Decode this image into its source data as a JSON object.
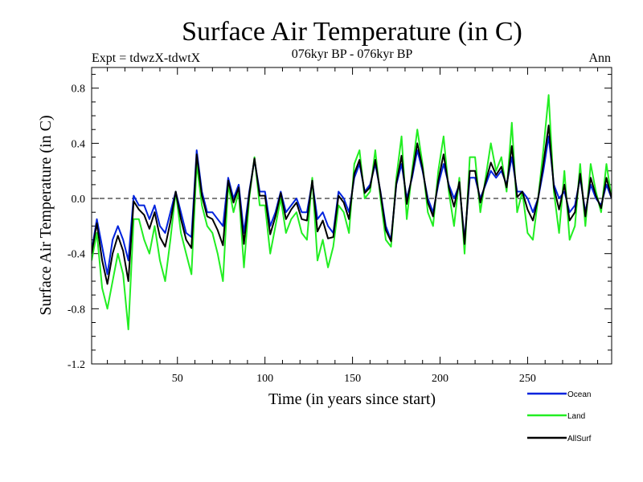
{
  "chart_data": {
    "type": "line",
    "title": "Surface Air Temperature (in C)",
    "subtitle_left": "Expt = tdwzX-tdwtX",
    "subtitle_center": "076kyr BP - 076kyr BP",
    "subtitle_right": "Ann",
    "xlabel": "Time (in years since start)",
    "ylabel": "Surface Air Temperature (in C)",
    "xlim": [
      1,
      298
    ],
    "ylim": [
      -1.2,
      0.95
    ],
    "x_ticks": [
      50,
      100,
      150,
      200,
      250
    ],
    "y_ticks": [
      -1.2,
      -0.8,
      -0.4,
      0.0,
      0.4,
      0.8
    ],
    "y_tick_labels": [
      "-1.2",
      "-0.8",
      "-0.4",
      "0.0",
      "0.4",
      "0.8"
    ],
    "zero_line": "dashed",
    "grid": false,
    "legend_position": "bottom-right",
    "series": [
      {
        "name": "Ocean",
        "color": "#0022dd",
        "x_start": 1,
        "x_step": 3,
        "values": [
          -0.38,
          -0.15,
          -0.35,
          -0.55,
          -0.3,
          -0.2,
          -0.3,
          -0.45,
          0.02,
          -0.05,
          -0.05,
          -0.15,
          -0.05,
          -0.2,
          -0.25,
          -0.1,
          0.05,
          -0.1,
          -0.25,
          -0.28,
          0.35,
          0.05,
          -0.1,
          -0.1,
          -0.15,
          -0.2,
          0.15,
          0.0,
          0.1,
          -0.25,
          0.05,
          0.28,
          0.05,
          0.05,
          -0.2,
          -0.1,
          0.05,
          -0.1,
          -0.05,
          0.0,
          -0.1,
          -0.1,
          0.12,
          -0.15,
          -0.1,
          -0.2,
          -0.25,
          0.05,
          0.0,
          -0.1,
          0.15,
          0.25,
          0.05,
          0.1,
          0.25,
          0.05,
          -0.2,
          -0.3,
          0.1,
          0.25,
          0.0,
          0.15,
          0.35,
          0.2,
          0.0,
          -0.1,
          0.1,
          0.25,
          0.1,
          0.0,
          0.1,
          -0.3,
          0.15,
          0.15,
          0.0,
          0.1,
          0.2,
          0.15,
          0.2,
          0.1,
          0.3,
          0.05,
          0.05,
          0.0,
          -0.1,
          0.0,
          0.2,
          0.45,
          0.1,
          0.0,
          0.05,
          -0.1,
          -0.05,
          0.15,
          -0.1,
          0.1,
          0.0,
          -0.05,
          0.1,
          0.0
        ]
      },
      {
        "name": "Land",
        "color": "#22ee22",
        "x_start": 1,
        "x_step": 3,
        "values": [
          -0.45,
          -0.25,
          -0.65,
          -0.8,
          -0.6,
          -0.4,
          -0.55,
          -0.95,
          -0.15,
          -0.15,
          -0.3,
          -0.4,
          -0.2,
          -0.45,
          -0.6,
          -0.3,
          0.05,
          -0.25,
          -0.4,
          -0.55,
          0.25,
          -0.05,
          -0.2,
          -0.25,
          -0.4,
          -0.6,
          0.1,
          -0.1,
          0.05,
          -0.5,
          0.0,
          0.3,
          -0.05,
          -0.05,
          -0.4,
          -0.2,
          0.0,
          -0.25,
          -0.15,
          -0.1,
          -0.25,
          -0.3,
          0.15,
          -0.45,
          -0.3,
          -0.5,
          -0.35,
          -0.05,
          -0.1,
          -0.25,
          0.25,
          0.35,
          0.0,
          0.05,
          0.35,
          0.0,
          -0.3,
          -0.35,
          0.15,
          0.45,
          -0.15,
          0.2,
          0.5,
          0.25,
          -0.1,
          -0.2,
          0.2,
          0.45,
          0.05,
          -0.2,
          0.15,
          -0.4,
          0.3,
          0.3,
          -0.1,
          0.15,
          0.4,
          0.2,
          0.3,
          0.05,
          0.55,
          -0.1,
          0.05,
          -0.25,
          -0.3,
          0.0,
          0.35,
          0.75,
          0.05,
          -0.25,
          0.2,
          -0.3,
          -0.2,
          0.25,
          -0.2,
          0.25,
          0.05,
          -0.1,
          0.25,
          0.0
        ]
      },
      {
        "name": "AllSurf",
        "color": "#000000",
        "x_start": 1,
        "x_step": 3,
        "values": [
          -0.4,
          -0.18,
          -0.45,
          -0.62,
          -0.4,
          -0.27,
          -0.38,
          -0.6,
          -0.02,
          -0.08,
          -0.12,
          -0.22,
          -0.1,
          -0.28,
          -0.35,
          -0.17,
          0.05,
          -0.15,
          -0.3,
          -0.36,
          0.32,
          0.02,
          -0.13,
          -0.15,
          -0.23,
          -0.34,
          0.13,
          -0.03,
          0.08,
          -0.33,
          0.03,
          0.29,
          0.02,
          0.02,
          -0.26,
          -0.13,
          0.04,
          -0.15,
          -0.08,
          -0.03,
          -0.15,
          -0.16,
          0.13,
          -0.24,
          -0.16,
          -0.29,
          -0.28,
          0.02,
          -0.03,
          -0.15,
          0.18,
          0.28,
          0.04,
          0.08,
          0.28,
          0.04,
          -0.23,
          -0.31,
          0.11,
          0.31,
          -0.04,
          0.17,
          0.4,
          0.22,
          -0.03,
          -0.13,
          0.13,
          0.32,
          0.08,
          -0.06,
          0.12,
          -0.33,
          0.2,
          0.2,
          -0.03,
          0.12,
          0.26,
          0.17,
          0.23,
          0.08,
          0.38,
          0.01,
          0.05,
          -0.08,
          -0.16,
          0.0,
          0.25,
          0.53,
          0.08,
          -0.08,
          0.1,
          -0.16,
          -0.1,
          0.18,
          -0.13,
          0.15,
          0.02,
          -0.07,
          0.15,
          0.0
        ]
      }
    ]
  }
}
